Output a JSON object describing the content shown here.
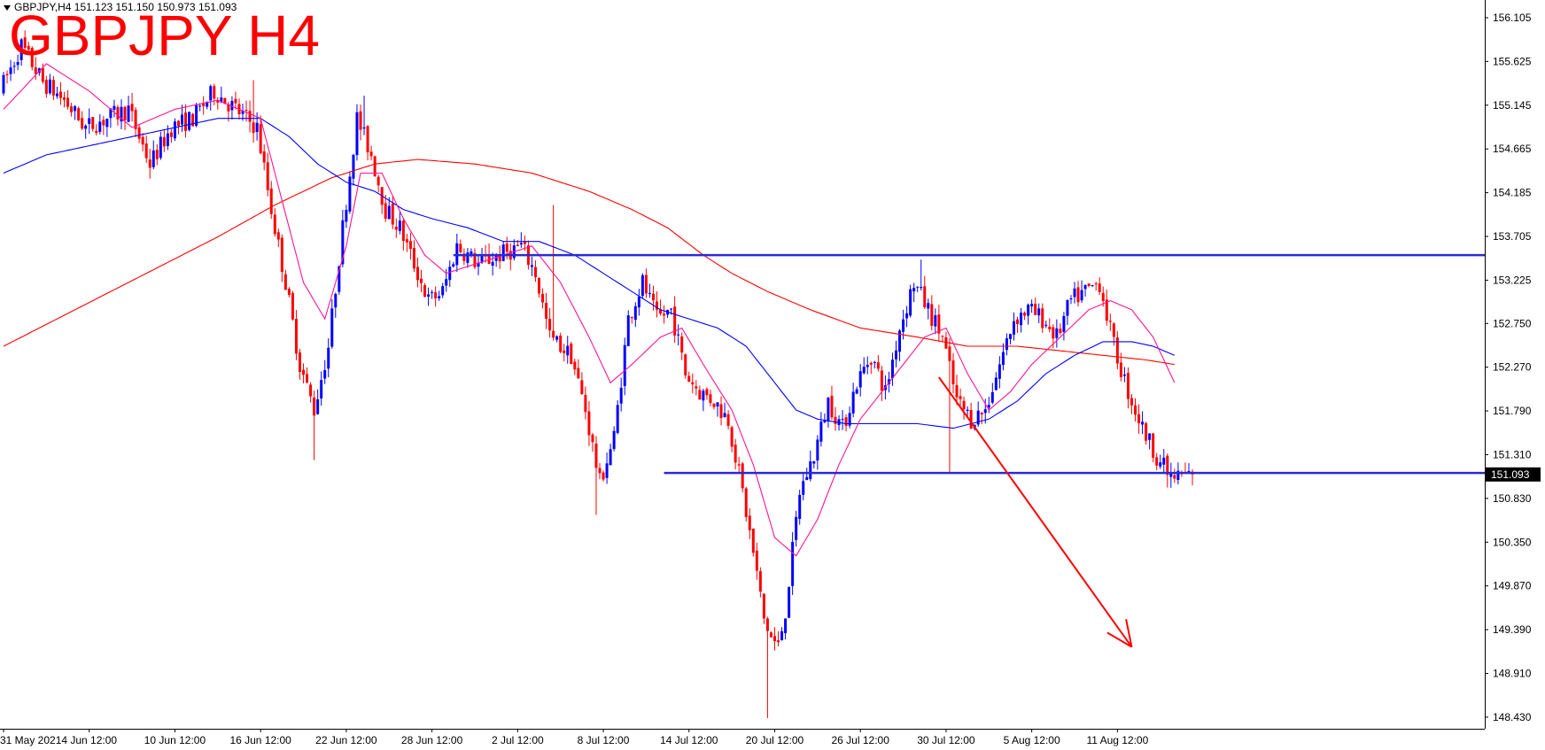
{
  "header": {
    "symbol_line": "GBPJPY,H4  151.123 151.150 150.973 151.093",
    "title": "GBPJPY H4"
  },
  "colors": {
    "background": "#ffffff",
    "bull_candle": "#0000ff",
    "bear_candle": "#ff0000",
    "ma_fast": "#ff1493",
    "ma_mid": "#0000ff",
    "ma_slow": "#ff0000",
    "level_line": "#2a2ad4",
    "arrow": "#ff0000",
    "price_tag_bg": "#000000"
  },
  "chart_data": {
    "type": "candlestick",
    "symbol": "GBPJPY",
    "timeframe": "H4",
    "last_bar": {
      "open": 151.123,
      "high": 151.15,
      "low": 150.973,
      "close": 151.093
    },
    "current_price_label": "151.093",
    "y_ticks": [
      "156.105",
      "155.625",
      "155.145",
      "154.665",
      "154.185",
      "153.705",
      "153.225",
      "152.750",
      "152.270",
      "151.790",
      "151.310",
      "150.830",
      "150.350",
      "149.870",
      "149.390",
      "148.910",
      "148.430"
    ],
    "y_tick_values": [
      156.105,
      155.625,
      155.145,
      154.665,
      154.185,
      153.705,
      153.225,
      152.75,
      152.27,
      151.79,
      151.31,
      150.83,
      150.35,
      149.87,
      149.39,
      148.91,
      148.43
    ],
    "ylim": [
      148.3,
      156.2
    ],
    "x_ticks": [
      "31 May 2021",
      "4 Jun 12:00",
      "10 Jun 12:00",
      "16 Jun 12:00",
      "22 Jun 12:00",
      "28 Jun 12:00",
      "2 Jul 12:00",
      "8 Jul 12:00",
      "14 Jul 12:00",
      "20 Jul 12:00",
      "26 Jul 12:00",
      "30 Jul 12:00",
      "5 Aug 12:00",
      "11 Aug 12:00"
    ],
    "x_tick_bars": [
      0,
      24,
      48,
      72,
      96,
      120,
      144,
      168,
      192,
      216,
      240,
      264,
      288,
      312
    ],
    "bar_count": 334,
    "price_path": [
      [
        0,
        155.3
      ],
      [
        6,
        155.8
      ],
      [
        12,
        155.4
      ],
      [
        18,
        155.2
      ],
      [
        24,
        154.9
      ],
      [
        30,
        155.0
      ],
      [
        36,
        155.1
      ],
      [
        42,
        154.5
      ],
      [
        48,
        154.9
      ],
      [
        54,
        155.0
      ],
      [
        60,
        155.3
      ],
      [
        66,
        155.1
      ],
      [
        72,
        154.9
      ],
      [
        76,
        154.0
      ],
      [
        80,
        153.2
      ],
      [
        84,
        152.3
      ],
      [
        88,
        151.8
      ],
      [
        92,
        152.5
      ],
      [
        96,
        153.8
      ],
      [
        100,
        155.0
      ],
      [
        104,
        154.6
      ],
      [
        108,
        154.0
      ],
      [
        112,
        153.8
      ],
      [
        116,
        153.4
      ],
      [
        120,
        153.0
      ],
      [
        124,
        153.1
      ],
      [
        128,
        153.6
      ],
      [
        134,
        153.4
      ],
      [
        140,
        153.5
      ],
      [
        146,
        153.6
      ],
      [
        150,
        153.3
      ],
      [
        154,
        152.6
      ],
      [
        160,
        152.4
      ],
      [
        164,
        151.8
      ],
      [
        168,
        151.0
      ],
      [
        172,
        151.5
      ],
      [
        176,
        152.8
      ],
      [
        180,
        153.2
      ],
      [
        184,
        152.8
      ],
      [
        188,
        152.9
      ],
      [
        192,
        152.2
      ],
      [
        196,
        152.0
      ],
      [
        200,
        151.9
      ],
      [
        204,
        151.7
      ],
      [
        208,
        150.9
      ],
      [
        212,
        150.0
      ],
      [
        214,
        149.5
      ],
      [
        216,
        149.3
      ],
      [
        218,
        149.2
      ],
      [
        220,
        149.6
      ],
      [
        224,
        150.9
      ],
      [
        228,
        151.3
      ],
      [
        232,
        151.9
      ],
      [
        236,
        151.6
      ],
      [
        240,
        152.1
      ],
      [
        244,
        152.4
      ],
      [
        248,
        152.0
      ],
      [
        252,
        152.7
      ],
      [
        256,
        153.2
      ],
      [
        260,
        152.9
      ],
      [
        264,
        152.6
      ],
      [
        268,
        151.9
      ],
      [
        272,
        151.7
      ],
      [
        276,
        151.8
      ],
      [
        280,
        152.3
      ],
      [
        284,
        152.8
      ],
      [
        288,
        152.9
      ],
      [
        292,
        152.8
      ],
      [
        296,
        152.6
      ],
      [
        300,
        153.0
      ],
      [
        304,
        153.1
      ],
      [
        308,
        153.2
      ],
      [
        312,
        152.5
      ],
      [
        316,
        152.0
      ],
      [
        320,
        151.6
      ],
      [
        324,
        151.3
      ],
      [
        328,
        151.05
      ],
      [
        333,
        151.093
      ]
    ],
    "spikes": [
      {
        "bar": 87,
        "low": 151.25
      },
      {
        "bar": 166,
        "low": 150.65
      },
      {
        "bar": 214,
        "low": 148.42
      },
      {
        "bar": 265,
        "low": 151.1
      },
      {
        "bar": 326,
        "low": 150.95
      },
      {
        "bar": 70,
        "high": 155.42
      },
      {
        "bar": 101,
        "high": 155.25
      },
      {
        "bar": 257,
        "high": 153.45
      },
      {
        "bar": 154,
        "high": 154.05
      }
    ],
    "ma_fast": [
      [
        0,
        155.1
      ],
      [
        12,
        155.6
      ],
      [
        24,
        155.3
      ],
      [
        36,
        154.9
      ],
      [
        48,
        155.1
      ],
      [
        60,
        155.2
      ],
      [
        72,
        155.0
      ],
      [
        78,
        154.1
      ],
      [
        84,
        153.2
      ],
      [
        90,
        152.8
      ],
      [
        96,
        153.6
      ],
      [
        100,
        154.4
      ],
      [
        106,
        154.4
      ],
      [
        112,
        153.9
      ],
      [
        118,
        153.5
      ],
      [
        124,
        153.3
      ],
      [
        132,
        153.4
      ],
      [
        140,
        153.5
      ],
      [
        148,
        153.6
      ],
      [
        156,
        153.2
      ],
      [
        164,
        152.6
      ],
      [
        170,
        152.1
      ],
      [
        176,
        152.3
      ],
      [
        184,
        152.6
      ],
      [
        190,
        152.7
      ],
      [
        196,
        152.3
      ],
      [
        204,
        151.8
      ],
      [
        210,
        151.2
      ],
      [
        216,
        150.4
      ],
      [
        222,
        150.2
      ],
      [
        228,
        150.6
      ],
      [
        234,
        151.2
      ],
      [
        240,
        151.7
      ],
      [
        246,
        152.0
      ],
      [
        252,
        152.3
      ],
      [
        258,
        152.6
      ],
      [
        264,
        152.7
      ],
      [
        270,
        152.2
      ],
      [
        276,
        151.8
      ],
      [
        282,
        152.0
      ],
      [
        288,
        152.3
      ],
      [
        296,
        152.6
      ],
      [
        304,
        152.9
      ],
      [
        310,
        153.0
      ],
      [
        316,
        152.9
      ],
      [
        322,
        152.6
      ],
      [
        328,
        152.1
      ]
    ],
    "ma_mid": [
      [
        0,
        154.4
      ],
      [
        12,
        154.6
      ],
      [
        24,
        154.7
      ],
      [
        36,
        154.8
      ],
      [
        48,
        154.9
      ],
      [
        60,
        155.0
      ],
      [
        72,
        155.0
      ],
      [
        80,
        154.8
      ],
      [
        88,
        154.5
      ],
      [
        96,
        154.3
      ],
      [
        104,
        154.2
      ],
      [
        112,
        154.0
      ],
      [
        120,
        153.9
      ],
      [
        130,
        153.8
      ],
      [
        140,
        153.65
      ],
      [
        150,
        153.65
      ],
      [
        160,
        153.5
      ],
      [
        168,
        153.3
      ],
      [
        176,
        153.1
      ],
      [
        184,
        152.9
      ],
      [
        192,
        152.8
      ],
      [
        200,
        152.7
      ],
      [
        208,
        152.5
      ],
      [
        216,
        152.1
      ],
      [
        222,
        151.8
      ],
      [
        228,
        151.7
      ],
      [
        236,
        151.65
      ],
      [
        246,
        151.65
      ],
      [
        256,
        151.65
      ],
      [
        266,
        151.6
      ],
      [
        276,
        151.7
      ],
      [
        284,
        151.9
      ],
      [
        292,
        152.2
      ],
      [
        300,
        152.4
      ],
      [
        308,
        152.55
      ],
      [
        316,
        152.55
      ],
      [
        322,
        152.5
      ],
      [
        328,
        152.4
      ]
    ],
    "ma_slow": [
      [
        0,
        152.5
      ],
      [
        20,
        152.9
      ],
      [
        40,
        153.3
      ],
      [
        60,
        153.7
      ],
      [
        76,
        154.05
      ],
      [
        92,
        154.35
      ],
      [
        104,
        154.5
      ],
      [
        116,
        154.55
      ],
      [
        132,
        154.5
      ],
      [
        148,
        154.4
      ],
      [
        164,
        154.2
      ],
      [
        176,
        154.0
      ],
      [
        186,
        153.8
      ],
      [
        196,
        153.5
      ],
      [
        204,
        153.3
      ],
      [
        214,
        153.1
      ],
      [
        226,
        152.9
      ],
      [
        240,
        152.7
      ],
      [
        256,
        152.6
      ],
      [
        270,
        152.5
      ],
      [
        284,
        152.5
      ],
      [
        296,
        152.45
      ],
      [
        308,
        152.4
      ],
      [
        320,
        152.35
      ],
      [
        328,
        152.3
      ]
    ],
    "resistance_level": {
      "price": 153.5,
      "from_bar": 126,
      "label_price": 153.5
    },
    "support_level": {
      "price": 151.11,
      "from_bar": 185
    },
    "arrow": {
      "from_bar": 262,
      "from_price": 152.16,
      "to_bar": 316,
      "to_price": 149.2
    }
  }
}
